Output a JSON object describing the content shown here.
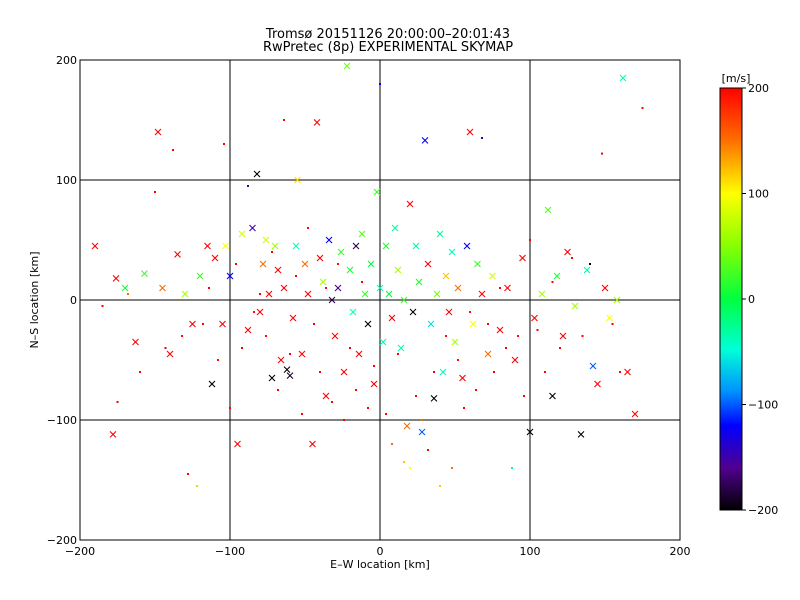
{
  "chart_data": {
    "type": "scatter",
    "title": "Tromsø 20151126 20:00:00–20:01:43",
    "subtitle": "RwPretec (8p) EXPERIMENTAL SKYMAP",
    "xlabel": "E–W location [km]",
    "ylabel": "N–S location [km]",
    "xlim": [
      -200,
      200
    ],
    "ylim": [
      -200,
      200
    ],
    "xticks": [
      -200,
      -100,
      0,
      100,
      200
    ],
    "yticks": [
      -200,
      -100,
      0,
      100,
      200
    ],
    "xtick_labels": [
      "−200",
      "−100",
      "0",
      "100",
      "200"
    ],
    "ytick_labels": [
      "−200",
      "−100",
      "0",
      "100",
      "200"
    ],
    "grid": "major lines at ±100 and 0",
    "colorbar": {
      "label": "[m/s]",
      "range": [
        -200,
        200
      ],
      "ticks": [
        200,
        100,
        0,
        -100,
        -200
      ],
      "tick_labels": [
        "200",
        "100",
        "0",
        "−100",
        "−200"
      ],
      "colormap": "rainbow (black→purple→blue→cyan→green→yellow→orange→red)"
    },
    "marker_types": [
      "x (cross)",
      "dot"
    ],
    "points": [
      [
        -190,
        45,
        200,
        "x"
      ],
      [
        -178,
        -112,
        200,
        "x"
      ],
      [
        -176,
        18,
        200,
        "x"
      ],
      [
        -170,
        10,
        10,
        "x"
      ],
      [
        -163,
        -35,
        200,
        "x"
      ],
      [
        -157,
        22,
        20,
        "x"
      ],
      [
        -148,
        140,
        200,
        "x"
      ],
      [
        -145,
        10,
        150,
        "x"
      ],
      [
        -140,
        -45,
        200,
        "x"
      ],
      [
        -135,
        38,
        200,
        "x"
      ],
      [
        -130,
        5,
        60,
        "x"
      ],
      [
        -125,
        -20,
        200,
        "x"
      ],
      [
        -120,
        20,
        20,
        "x"
      ],
      [
        -115,
        45,
        200,
        "x"
      ],
      [
        -112,
        -70,
        -200,
        "x"
      ],
      [
        -110,
        35,
        200,
        "x"
      ],
      [
        -105,
        -20,
        200,
        "x"
      ],
      [
        -103,
        45,
        100,
        "x"
      ],
      [
        -100,
        20,
        -120,
        "x"
      ],
      [
        -95,
        -120,
        200,
        "x"
      ],
      [
        -92,
        55,
        80,
        "x"
      ],
      [
        -88,
        -25,
        200,
        "x"
      ],
      [
        -85,
        60,
        -150,
        "x"
      ],
      [
        -82,
        105,
        -200,
        "x"
      ],
      [
        -80,
        -10,
        200,
        "x"
      ],
      [
        -78,
        30,
        150,
        "x"
      ],
      [
        -76,
        50,
        80,
        "x"
      ],
      [
        -74,
        5,
        200,
        "x"
      ],
      [
        -72,
        -65,
        -200,
        "x"
      ],
      [
        -70,
        45,
        60,
        "x"
      ],
      [
        -68,
        25,
        200,
        "x"
      ],
      [
        -66,
        -50,
        200,
        "x"
      ],
      [
        -64,
        10,
        200,
        "x"
      ],
      [
        -62,
        -58,
        -200,
        "x"
      ],
      [
        -60,
        -63,
        -190,
        "x"
      ],
      [
        -58,
        -15,
        200,
        "x"
      ],
      [
        -56,
        45,
        -40,
        "x"
      ],
      [
        -55,
        100,
        110,
        "x"
      ],
      [
        -52,
        -45,
        200,
        "x"
      ],
      [
        -50,
        30,
        150,
        "x"
      ],
      [
        -48,
        5,
        200,
        "x"
      ],
      [
        -45,
        -120,
        200,
        "x"
      ],
      [
        -42,
        148,
        200,
        "x"
      ],
      [
        -40,
        35,
        200,
        "x"
      ],
      [
        -38,
        15,
        60,
        "x"
      ],
      [
        -36,
        -80,
        200,
        "x"
      ],
      [
        -34,
        50,
        -120,
        "x"
      ],
      [
        -32,
        0,
        -180,
        "x"
      ],
      [
        -30,
        -30,
        200,
        "x"
      ],
      [
        -28,
        10,
        -160,
        "x"
      ],
      [
        -26,
        40,
        20,
        "x"
      ],
      [
        -24,
        -60,
        200,
        "x"
      ],
      [
        -22,
        195,
        40,
        "x"
      ],
      [
        -20,
        25,
        10,
        "x"
      ],
      [
        -18,
        -10,
        -40,
        "x"
      ],
      [
        -16,
        45,
        -180,
        "x"
      ],
      [
        -14,
        -45,
        200,
        "x"
      ],
      [
        -12,
        55,
        30,
        "x"
      ],
      [
        -10,
        5,
        20,
        "x"
      ],
      [
        -8,
        -20,
        -200,
        "x"
      ],
      [
        -6,
        30,
        0,
        "x"
      ],
      [
        -4,
        -70,
        200,
        "x"
      ],
      [
        -2,
        90,
        20,
        "x"
      ],
      [
        0,
        10,
        -40,
        "x"
      ],
      [
        2,
        -35,
        -30,
        "x"
      ],
      [
        4,
        45,
        10,
        "x"
      ],
      [
        6,
        5,
        0,
        "x"
      ],
      [
        8,
        -15,
        200,
        "x"
      ],
      [
        10,
        60,
        -30,
        "x"
      ],
      [
        12,
        25,
        60,
        "x"
      ],
      [
        14,
        -40,
        -40,
        "x"
      ],
      [
        16,
        0,
        20,
        "x"
      ],
      [
        18,
        -105,
        150,
        "x"
      ],
      [
        20,
        80,
        200,
        "x"
      ],
      [
        22,
        -10,
        -200,
        "x"
      ],
      [
        24,
        45,
        -30,
        "x"
      ],
      [
        26,
        15,
        10,
        "x"
      ],
      [
        28,
        -110,
        -100,
        "x"
      ],
      [
        30,
        133,
        -120,
        "x"
      ],
      [
        32,
        30,
        200,
        "x"
      ],
      [
        34,
        -20,
        -60,
        "x"
      ],
      [
        36,
        -82,
        -200,
        "x"
      ],
      [
        38,
        5,
        40,
        "x"
      ],
      [
        40,
        55,
        -30,
        "x"
      ],
      [
        42,
        -60,
        -40,
        "x"
      ],
      [
        44,
        20,
        120,
        "x"
      ],
      [
        46,
        -10,
        200,
        "x"
      ],
      [
        48,
        40,
        -40,
        "x"
      ],
      [
        50,
        -35,
        60,
        "x"
      ],
      [
        52,
        10,
        150,
        "x"
      ],
      [
        55,
        -65,
        200,
        "x"
      ],
      [
        58,
        45,
        -120,
        "x"
      ],
      [
        60,
        140,
        200,
        "x"
      ],
      [
        62,
        -20,
        100,
        "x"
      ],
      [
        65,
        30,
        20,
        "x"
      ],
      [
        68,
        5,
        200,
        "x"
      ],
      [
        72,
        -45,
        150,
        "x"
      ],
      [
        75,
        20,
        80,
        "x"
      ],
      [
        80,
        -25,
        200,
        "x"
      ],
      [
        85,
        10,
        200,
        "x"
      ],
      [
        90,
        -50,
        200,
        "x"
      ],
      [
        95,
        35,
        200,
        "x"
      ],
      [
        100,
        -110,
        -200,
        "x"
      ],
      [
        103,
        -15,
        200,
        "x"
      ],
      [
        108,
        5,
        60,
        "x"
      ],
      [
        112,
        75,
        30,
        "x"
      ],
      [
        115,
        -80,
        -200,
        "x"
      ],
      [
        118,
        20,
        10,
        "x"
      ],
      [
        122,
        -30,
        200,
        "x"
      ],
      [
        125,
        40,
        200,
        "x"
      ],
      [
        130,
        -5,
        60,
        "x"
      ],
      [
        134,
        -112,
        -200,
        "x"
      ],
      [
        138,
        25,
        -30,
        "x"
      ],
      [
        142,
        -55,
        -100,
        "x"
      ],
      [
        145,
        -70,
        200,
        "x"
      ],
      [
        150,
        10,
        200,
        "x"
      ],
      [
        153,
        -15,
        100,
        "x"
      ],
      [
        158,
        0,
        60,
        "x"
      ],
      [
        162,
        185,
        -40,
        "x"
      ],
      [
        165,
        -60,
        200,
        "x"
      ],
      [
        170,
        -95,
        200,
        "x"
      ],
      [
        -185,
        -5,
        200,
        "."
      ],
      [
        -175,
        -85,
        200,
        "."
      ],
      [
        -168,
        5,
        150,
        "."
      ],
      [
        -160,
        -60,
        200,
        "."
      ],
      [
        -150,
        90,
        200,
        "."
      ],
      [
        -143,
        -40,
        200,
        "."
      ],
      [
        -138,
        125,
        200,
        "."
      ],
      [
        -132,
        -30,
        200,
        "."
      ],
      [
        -128,
        -145,
        200,
        "."
      ],
      [
        -122,
        -155,
        60,
        "."
      ],
      [
        -118,
        -20,
        200,
        "."
      ],
      [
        -114,
        10,
        200,
        "."
      ],
      [
        -108,
        -50,
        200,
        "."
      ],
      [
        -104,
        130,
        200,
        "."
      ],
      [
        -100,
        -90,
        200,
        "."
      ],
      [
        -96,
        30,
        200,
        "."
      ],
      [
        -92,
        -40,
        200,
        "."
      ],
      [
        -88,
        95,
        -150,
        "."
      ],
      [
        -84,
        -10,
        200,
        "."
      ],
      [
        -80,
        5,
        200,
        "."
      ],
      [
        -76,
        -30,
        200,
        "."
      ],
      [
        -72,
        40,
        200,
        "."
      ],
      [
        -68,
        -75,
        200,
        "."
      ],
      [
        -64,
        150,
        200,
        "."
      ],
      [
        -60,
        -45,
        200,
        "."
      ],
      [
        -56,
        20,
        200,
        "."
      ],
      [
        -52,
        -95,
        200,
        "."
      ],
      [
        -48,
        60,
        200,
        "."
      ],
      [
        -44,
        -20,
        200,
        "."
      ],
      [
        -40,
        -60,
        200,
        "."
      ],
      [
        -36,
        10,
        200,
        "."
      ],
      [
        -32,
        -85,
        200,
        "."
      ],
      [
        -28,
        30,
        200,
        "."
      ],
      [
        -24,
        -100,
        200,
        "."
      ],
      [
        -20,
        -40,
        200,
        "."
      ],
      [
        -16,
        -75,
        200,
        "."
      ],
      [
        -12,
        15,
        200,
        "."
      ],
      [
        -8,
        -90,
        200,
        "."
      ],
      [
        -4,
        -55,
        200,
        "."
      ],
      [
        0,
        180,
        -120,
        "."
      ],
      [
        4,
        -95,
        200,
        "."
      ],
      [
        8,
        -120,
        150,
        "."
      ],
      [
        12,
        -45,
        200,
        "."
      ],
      [
        16,
        -135,
        120,
        "."
      ],
      [
        20,
        -140,
        100,
        "."
      ],
      [
        24,
        -80,
        200,
        "."
      ],
      [
        28,
        -100,
        150,
        "."
      ],
      [
        32,
        -125,
        200,
        "."
      ],
      [
        36,
        -60,
        200,
        "."
      ],
      [
        40,
        -155,
        120,
        "."
      ],
      [
        44,
        -30,
        200,
        "."
      ],
      [
        48,
        -140,
        150,
        "."
      ],
      [
        52,
        -50,
        200,
        "."
      ],
      [
        56,
        -90,
        200,
        "."
      ],
      [
        60,
        -10,
        200,
        "."
      ],
      [
        64,
        -75,
        200,
        "."
      ],
      [
        68,
        135,
        -150,
        "."
      ],
      [
        72,
        -20,
        200,
        "."
      ],
      [
        76,
        -60,
        200,
        "."
      ],
      [
        80,
        10,
        200,
        "."
      ],
      [
        84,
        -40,
        200,
        "."
      ],
      [
        88,
        -140,
        -40,
        "."
      ],
      [
        92,
        -30,
        200,
        "."
      ],
      [
        96,
        -80,
        200,
        "."
      ],
      [
        100,
        50,
        200,
        "."
      ],
      [
        105,
        -25,
        200,
        "."
      ],
      [
        110,
        -60,
        200,
        "."
      ],
      [
        115,
        15,
        200,
        "."
      ],
      [
        120,
        -40,
        200,
        "."
      ],
      [
        128,
        35,
        200,
        "."
      ],
      [
        135,
        -30,
        200,
        "."
      ],
      [
        140,
        30,
        -200,
        "."
      ],
      [
        148,
        122,
        200,
        "."
      ],
      [
        155,
        -20,
        200,
        "."
      ],
      [
        160,
        -60,
        200,
        "."
      ],
      [
        175,
        160,
        200,
        "."
      ]
    ]
  }
}
